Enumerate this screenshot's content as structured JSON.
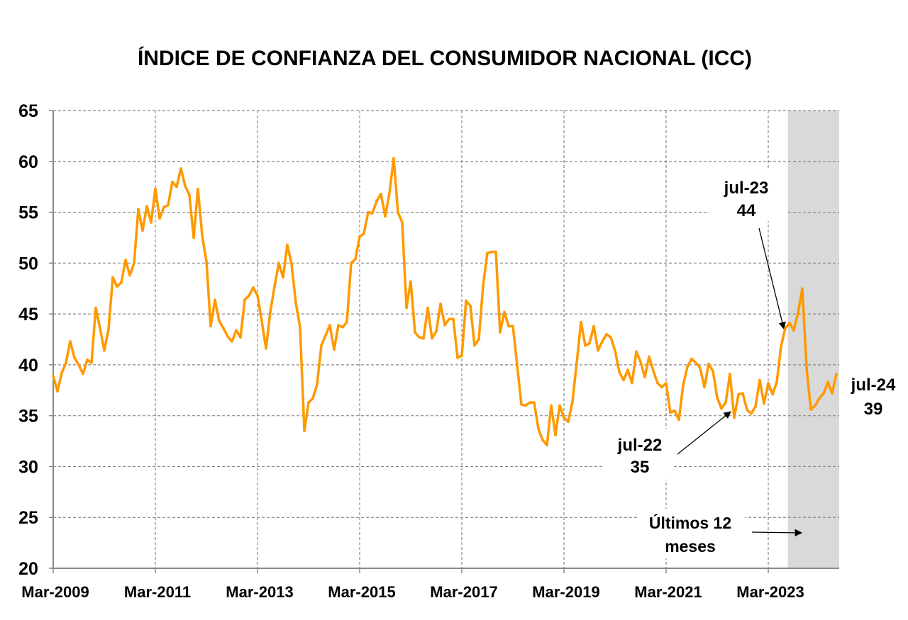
{
  "chart_data": {
    "type": "line",
    "title": "ÍNDICE DE CONFIANZA DEL CONSUMIDOR NACIONAL (ICC)",
    "xlabel": "",
    "ylabel": "",
    "ylim": [
      20,
      65
    ],
    "yticks": [
      20,
      25,
      30,
      35,
      40,
      45,
      50,
      55,
      60,
      65
    ],
    "xtick_labels": [
      "Mar-2009",
      "Mar-2011",
      "Mar-2013",
      "Mar-2015",
      "Mar-2017",
      "Mar-2019",
      "Mar-2021",
      "Mar-2023"
    ],
    "xtick_index": [
      0,
      24,
      48,
      72,
      96,
      120,
      144,
      168
    ],
    "grid": true,
    "start_month": "Mar-2009",
    "frequency": "monthly",
    "series": [
      {
        "name": "ICC",
        "color": "#FF9900",
        "values": [
          38.9,
          37.4,
          39.2,
          40.2,
          42.3,
          40.7,
          40.0,
          39.1,
          40.5,
          40.2,
          45.6,
          43.6,
          41.4,
          43.5,
          48.6,
          47.7,
          48.1,
          50.3,
          48.8,
          50.0,
          55.3,
          53.2,
          55.6,
          54.0,
          57.3,
          54.4,
          55.5,
          55.7,
          58.0,
          57.5,
          59.3,
          57.6,
          56.7,
          52.5,
          57.3,
          52.7,
          50.2,
          43.8,
          46.4,
          44.3,
          43.6,
          42.8,
          42.3,
          43.4,
          42.7,
          46.4,
          46.8,
          47.6,
          46.8,
          44.3,
          41.6,
          45.2,
          47.7,
          50.0,
          48.6,
          51.8,
          49.9,
          46.1,
          43.7,
          33.5,
          36.3,
          36.7,
          38.1,
          41.9,
          42.9,
          43.9,
          41.5,
          43.9,
          43.7,
          44.2,
          50.0,
          50.4,
          52.6,
          52.9,
          55.0,
          54.9,
          56.1,
          56.8,
          54.6,
          56.9,
          60.3,
          55.0,
          54.0,
          45.6,
          48.2,
          43.2,
          42.7,
          42.6,
          45.6,
          42.6,
          43.3,
          46.0,
          43.9,
          44.5,
          44.5,
          40.7,
          40.9,
          46.3,
          45.8,
          41.9,
          42.5,
          47.8,
          51.0,
          51.1,
          51.1,
          43.2,
          45.2,
          43.8,
          43.8,
          40.0,
          36.1,
          36.0,
          36.3,
          36.3,
          33.7,
          32.6,
          32.1,
          36.0,
          33.1,
          36.0,
          34.8,
          34.4,
          36.4,
          40.2,
          44.2,
          41.9,
          42.1,
          43.8,
          41.4,
          42.3,
          43.0,
          42.7,
          41.4,
          39.3,
          38.5,
          39.5,
          38.2,
          41.3,
          40.3,
          38.8,
          40.8,
          39.4,
          38.2,
          37.8,
          38.2,
          35.3,
          35.5,
          34.6,
          38.0,
          39.8,
          40.6,
          40.2,
          39.7,
          37.8,
          40.1,
          39.4,
          36.8,
          35.7,
          36.3,
          39.1,
          34.8,
          37.1,
          37.2,
          35.6,
          35.2,
          35.9,
          38.5,
          36.2,
          38.2,
          37.1,
          38.3,
          41.8,
          43.6,
          44.1,
          43.4,
          45.1,
          47.5,
          39.7,
          35.6,
          36.0,
          36.7,
          37.2,
          38.3,
          37.2,
          39.1
        ]
      }
    ],
    "shaded_region": {
      "label_line1": "Últimos 12",
      "label_line2": "meses",
      "from_index": 172.6,
      "to_index": 184.7,
      "color": "#D9D9D9"
    },
    "annotations": [
      {
        "id": "jul23",
        "label": "jul-23",
        "value": "44"
      },
      {
        "id": "jul22",
        "label": "jul-22",
        "value": "35"
      },
      {
        "id": "jul24",
        "label": "jul-24",
        "value": "39"
      }
    ]
  }
}
